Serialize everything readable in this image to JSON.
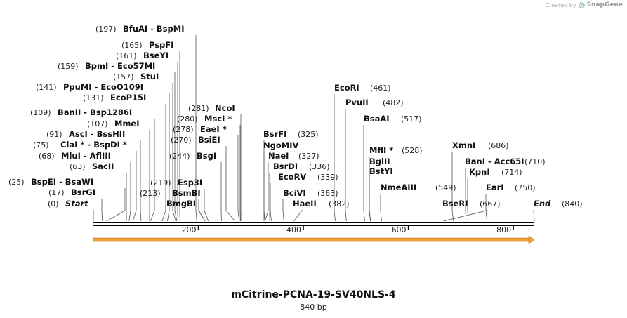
{
  "credit": {
    "prefix": "Created by",
    "brand": "SnapGene"
  },
  "title": "mCitrine-PCNA-19-SV40NLS-4",
  "subtitle": "840 bp",
  "sequence_length": 840,
  "colors": {
    "feature": "#f0a030",
    "feature_outline": "#c87a10",
    "text": "#111111",
    "line": "#555555"
  },
  "ruler": {
    "ticks": [
      200,
      400,
      600,
      800
    ]
  },
  "sites": [
    {
      "pos": "(197)",
      "names": [
        "BfuAI",
        "BspMI"
      ],
      "site": 197
    },
    {
      "pos": "(165)",
      "names": [
        "PspFI"
      ],
      "site": 165
    },
    {
      "pos": "(161)",
      "names": [
        "BseYI"
      ],
      "site": 161
    },
    {
      "pos": "(159)",
      "names": [
        "BpmI",
        "Eco57MI"
      ],
      "site": 159
    },
    {
      "pos": "(157)",
      "names": [
        "StuI"
      ],
      "site": 157
    },
    {
      "pos": "(141)",
      "names": [
        "PpuMI",
        "EcoO109I"
      ],
      "site": 141
    },
    {
      "pos": "(131)",
      "names": [
        "EcoP15I"
      ],
      "site": 131
    },
    {
      "pos": "(281)",
      "names": [
        "NcoI"
      ],
      "site": 281
    },
    {
      "pos": "(280)",
      "names": [
        "MscI *"
      ],
      "site": 280
    },
    {
      "pos": "(109)",
      "names": [
        "BanII",
        "Bsp1286I"
      ],
      "site": 109
    },
    {
      "pos": "(278)",
      "names": [
        "EaeI *"
      ],
      "site": 278
    },
    {
      "pos": "(107)",
      "names": [
        "MmeI"
      ],
      "site": 107
    },
    {
      "pos": "(270)",
      "names": [
        "BsiEI"
      ],
      "site": 270
    },
    {
      "pos": "(91)",
      "names": [
        "AscI",
        "BssHII"
      ],
      "site": 91
    },
    {
      "pos": "(75)",
      "names": [
        "ClaI *",
        "BspDI *"
      ],
      "site": 75
    },
    {
      "pos": "(244)",
      "names": [
        "BsgI"
      ],
      "site": 244
    },
    {
      "pos": "(68)",
      "names": [
        "MluI",
        "AflIII"
      ],
      "site": 68
    },
    {
      "pos": "(63)",
      "names": [
        "SacII"
      ],
      "site": 63
    },
    {
      "pos": "(219)",
      "names": [
        "Esp3I"
      ],
      "site": 219
    },
    {
      "pos": "(25)",
      "names": [
        "BspEI",
        "BsaWI"
      ],
      "site": 25
    },
    {
      "pos": "(213)",
      "names": [
        "BsmBI"
      ],
      "site": 213
    },
    {
      "pos": "(17)",
      "names": [
        "BsrGI"
      ],
      "site": 17
    },
    {
      "pos": "",
      "names": [
        "BmgBI"
      ],
      "site": 213
    },
    {
      "pos": "(0)",
      "names": [
        "Start"
      ],
      "site": 0
    },
    {
      "pos": "(461)",
      "names": [
        "EcoRI"
      ],
      "site": 461
    },
    {
      "pos": "(482)",
      "names": [
        "PvuII"
      ],
      "site": 482
    },
    {
      "pos": "(517)",
      "names": [
        "BsaAI"
      ],
      "site": 517
    },
    {
      "pos": "(325)",
      "names": [
        "BsrFI"
      ],
      "site": 325
    },
    {
      "pos": "",
      "names": [
        "NgoMIV"
      ],
      "site": 327
    },
    {
      "pos": "(327)",
      "names": [
        "NaeI"
      ],
      "site": 327
    },
    {
      "pos": "(528)",
      "names": [
        "MflI *"
      ],
      "site": 528
    },
    {
      "pos": "(336)",
      "names": [
        "BsrDI"
      ],
      "site": 336
    },
    {
      "pos": "",
      "names": [
        "BglII"
      ],
      "site": 528
    },
    {
      "pos": "(339)",
      "names": [
        "EcoRV"
      ],
      "site": 339
    },
    {
      "pos": "",
      "names": [
        "BstYI"
      ],
      "site": 528
    },
    {
      "pos": "(549)",
      "names": [
        "NmeAIII"
      ],
      "site": 549
    },
    {
      "pos": "(363)",
      "names": [
        "BciVI"
      ],
      "site": 363
    },
    {
      "pos": "(382)",
      "names": [
        "HaeII"
      ],
      "site": 382
    },
    {
      "pos": "(686)",
      "names": [
        "XmnI"
      ],
      "site": 686
    },
    {
      "pos": "(710)",
      "names": [
        "BanI",
        "Acc65I"
      ],
      "site": 710
    },
    {
      "pos": "(714)",
      "names": [
        "KpnI"
      ],
      "site": 714
    },
    {
      "pos": "(750)",
      "names": [
        "EarI"
      ],
      "site": 750
    },
    {
      "pos": "(667)",
      "names": [
        "BseRI"
      ],
      "site": 667
    },
    {
      "pos": "(840)",
      "names": [
        "End"
      ],
      "site": 840
    }
  ]
}
